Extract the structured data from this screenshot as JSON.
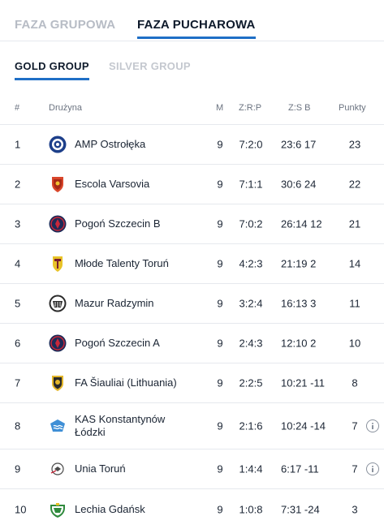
{
  "tabs": {
    "group_stage": "FAZA GRUPOWA",
    "knockout_stage": "FAZA PUCHAROWA"
  },
  "subtabs": {
    "gold": "GOLD GROUP",
    "silver": "SILVER GROUP"
  },
  "table": {
    "headers": {
      "pos": "#",
      "team": "Drużyna",
      "matches": "M",
      "wdl": "Z:R:P",
      "goals": "Z:S B",
      "points": "Punkty"
    },
    "rows": [
      {
        "pos": "1",
        "team": "AMP Ostrołęka",
        "m": "9",
        "wdl": "7:2:0",
        "goals": "23:6 17",
        "pts": "23",
        "logo_color": "#1d3f8a"
      },
      {
        "pos": "2",
        "team": "Escola Varsovia",
        "m": "9",
        "wdl": "7:1:1",
        "goals": "30:6 24",
        "pts": "22",
        "logo_color": "#d9462b"
      },
      {
        "pos": "3",
        "team": "Pogoń Szczecin B",
        "m": "9",
        "wdl": "7:0:2",
        "goals": "26:14 12",
        "pts": "21",
        "logo_color": "#1e2a57"
      },
      {
        "pos": "4",
        "team": "Młode Talenty Toruń",
        "m": "9",
        "wdl": "4:2:3",
        "goals": "21:19 2",
        "pts": "14",
        "logo_color": "#e8c227"
      },
      {
        "pos": "5",
        "team": "Mazur Radzymin",
        "m": "9",
        "wdl": "3:2:4",
        "goals": "16:13 3",
        "pts": "11",
        "logo_color": "#2a2a2a"
      },
      {
        "pos": "6",
        "team": "Pogoń Szczecin A",
        "m": "9",
        "wdl": "2:4:3",
        "goals": "12:10 2",
        "pts": "10",
        "logo_color": "#1e2a57"
      },
      {
        "pos": "7",
        "team": "FA Šiauliai (Lithuania)",
        "m": "9",
        "wdl": "2:2:5",
        "goals": "10:21 -11",
        "pts": "8",
        "logo_color": "#e3b62a"
      },
      {
        "pos": "8",
        "team_line1": "KAS Konstantynów",
        "team_line2": "Łódzki",
        "m": "9",
        "wdl": "2:1:6",
        "goals": "10:24 -14",
        "pts": "7",
        "logo_color": "#3f8fd6",
        "info": true
      },
      {
        "pos": "9",
        "team": "Unia Toruń",
        "m": "9",
        "wdl": "1:4:4",
        "goals": "6:17 -11",
        "pts": "7",
        "logo_color": "#4a4a4a",
        "info": true
      },
      {
        "pos": "10",
        "team": "Lechia Gdańsk",
        "m": "9",
        "wdl": "1:0:8",
        "goals": "7:31 -24",
        "pts": "3",
        "logo_color": "#2f8a3d"
      }
    ]
  },
  "colors": {
    "accent": "#1f6fc6",
    "inactive_tab": "#b7bcc5",
    "divider": "#e6e9ee"
  }
}
